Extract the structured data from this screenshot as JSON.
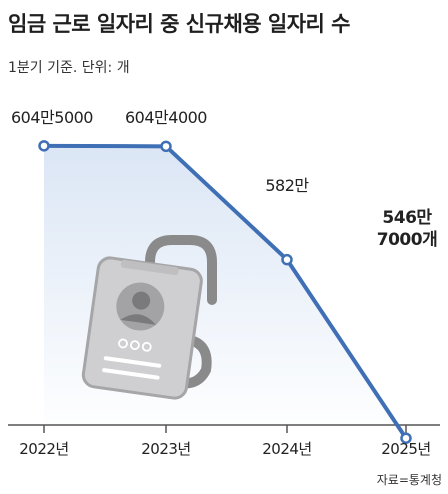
{
  "title": "임금 근로 일자리 중 신규채용 일자리 수",
  "subtitle": "1분기 기준. 단위: 개",
  "source": "자료=통계청",
  "colors": {
    "line": "#3f6fb4",
    "area_top": "#dbe6f5",
    "area_bottom": "#ffffff",
    "text": "#222222",
    "axis": "#555555"
  },
  "chart_data": {
    "type": "line",
    "categories": [
      "2022년",
      "2023년",
      "2024년",
      "2025년"
    ],
    "values": [
      6045000,
      6044000,
      5820000,
      5467000
    ],
    "data_labels": [
      [
        "604만5000"
      ],
      [
        "604만4000"
      ],
      [
        "582만"
      ],
      [
        "546만",
        "7000개"
      ]
    ],
    "data_label_bold": [
      false,
      false,
      false,
      true
    ],
    "ylim": [
      5250000,
      6100000
    ],
    "grid": false,
    "area_fill": true,
    "illustration": "employee-id-badge"
  }
}
